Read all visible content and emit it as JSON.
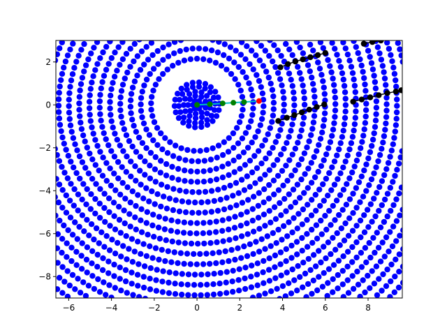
{
  "chart_data": {
    "type": "scatter",
    "title": "",
    "xlabel": "",
    "ylabel": "",
    "xlim": [
      -6.6,
      9.6
    ],
    "ylim": [
      -9.0,
      3.0
    ],
    "grid": false,
    "x_ticks": [
      -6,
      -4,
      -2,
      0,
      2,
      4,
      6,
      8
    ],
    "x_tick_labels": [
      "−6",
      "−4",
      "−2",
      "0",
      "2",
      "4",
      "6",
      "8"
    ],
    "y_ticks": [
      2,
      0,
      -2,
      -4,
      -6,
      -8
    ],
    "y_tick_labels": [
      "2",
      "0",
      "−2",
      "−4",
      "−6",
      "−8"
    ],
    "colors": {
      "points": "#0000ff",
      "highlight_points": "#000000",
      "path_line": "#00bfbf",
      "path_nodes": "#008000",
      "end_point": "#ff0000"
    },
    "series": [
      {
        "kind": "rings",
        "center": [
          0,
          0
        ],
        "inner_rings": [
          0.2,
          0.42,
          0.62,
          0.85,
          1.05
        ],
        "outer_radii_from": 2.15,
        "ring_spacing": 0.48,
        "ring_count": 24,
        "point_spacing": 0.3
      },
      {
        "kind": "highlight_segments",
        "segments": [
          [
            [
              3.8,
              -0.75
            ],
            [
              4.2,
              -0.6
            ],
            [
              4.55,
              -0.48
            ],
            [
              4.9,
              -0.35
            ],
            [
              5.25,
              -0.22
            ],
            [
              5.6,
              -0.1
            ],
            [
              5.95,
              0.02
            ]
          ],
          [
            [
              3.9,
              1.75
            ],
            [
              4.25,
              1.9
            ],
            [
              4.6,
              2.02
            ],
            [
              4.95,
              2.12
            ],
            [
              5.3,
              2.22
            ],
            [
              5.65,
              2.32
            ],
            [
              6.0,
              2.42
            ]
          ],
          [
            [
              7.3,
              0.15
            ],
            [
              7.7,
              0.25
            ],
            [
              8.1,
              0.35
            ],
            [
              8.5,
              0.45
            ],
            [
              8.9,
              0.55
            ],
            [
              9.3,
              0.62
            ],
            [
              9.55,
              0.68
            ]
          ],
          [
            [
              7.8,
              2.85
            ],
            [
              8.2,
              2.93
            ],
            [
              8.6,
              3.0
            ]
          ]
        ]
      },
      {
        "kind": "path",
        "points": [
          [
            0,
            0
          ],
          [
            0.6,
            0.03
          ],
          [
            1.2,
            0.07
          ],
          [
            1.7,
            0.1
          ],
          [
            2.2,
            0.13
          ],
          [
            2.9,
            0.18
          ]
        ]
      }
    ]
  }
}
